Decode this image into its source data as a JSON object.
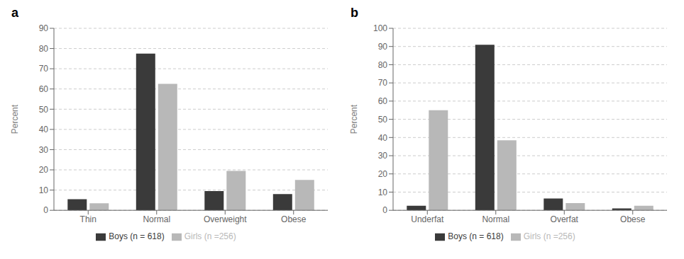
{
  "chart_data": [
    {
      "type": "bar",
      "title": "a",
      "categories": [
        "Thin",
        "Normal",
        "Overweight",
        "Obese"
      ],
      "series": [
        {
          "name": "Boys (n = 618)",
          "color": "#3a3a3a",
          "values": [
            5.5,
            77.5,
            9.5,
            8.0
          ]
        },
        {
          "name": "Girls (n =256)",
          "color": "#b8b8b8",
          "values": [
            3.5,
            62.5,
            19.5,
            15.0
          ]
        }
      ],
      "ylabel": "Percent",
      "ylim": [
        0,
        90
      ],
      "yticks": [
        0,
        10,
        20,
        30,
        40,
        50,
        60,
        70,
        80,
        90
      ],
      "grid": true,
      "legend": "bottom"
    },
    {
      "type": "bar",
      "title": "b",
      "categories": [
        "Underfat",
        "Normal",
        "Overfat",
        "Obese"
      ],
      "series": [
        {
          "name": "Boys (n = 618)",
          "color": "#3a3a3a",
          "values": [
            2.5,
            91.0,
            6.5,
            1.0
          ]
        },
        {
          "name": "Girls (n =256)",
          "color": "#b8b8b8",
          "values": [
            55.0,
            38.5,
            4.0,
            2.5
          ]
        }
      ],
      "ylabel": "Percent",
      "ylim": [
        0,
        100
      ],
      "yticks": [
        0,
        10,
        20,
        30,
        40,
        50,
        60,
        70,
        80,
        90,
        100
      ],
      "grid": true,
      "legend": "bottom"
    }
  ]
}
